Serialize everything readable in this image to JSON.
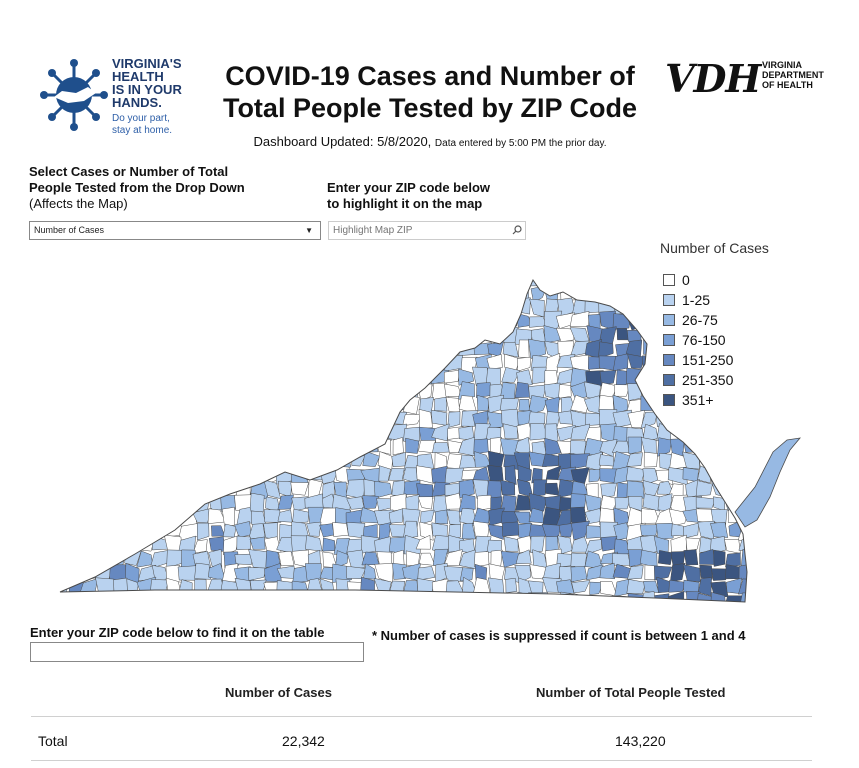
{
  "header": {
    "campaign_logo": {
      "text_lines": [
        "VIRGINIA'S",
        "HEALTH",
        "IS IN YOUR",
        "HANDS."
      ],
      "tagline": [
        "Do your part,",
        "stay at home."
      ],
      "color": "#1f3a6b"
    },
    "title_lines": [
      "COVID-19 Cases and Number of",
      "Total People Tested by ZIP Code"
    ],
    "updated_main": "Dashboard Updated: 5/8/2020,",
    "updated_note": "Data entered by 5:00 PM the prior day.",
    "agency_logo": {
      "mark": "VDH",
      "name_lines": [
        "VIRGINIA",
        "DEPARTMENT",
        "OF HEALTH"
      ]
    }
  },
  "controls": {
    "measure_label_lines": [
      "Select Cases or Number of Total",
      "People Tested from the Drop Down"
    ],
    "measure_label_sub": "(Affects the Map)",
    "measure_selected": "Number of Cases",
    "highlight_label_lines": [
      "Enter your ZIP code below",
      "to highlight it on the map"
    ],
    "highlight_placeholder": "Highlight Map ZIP"
  },
  "legend": {
    "title": "Number of Cases",
    "items": [
      {
        "label": "0",
        "color": "#ffffff"
      },
      {
        "label": "1-25",
        "color": "#b9d2ef"
      },
      {
        "label": "26-75",
        "color": "#97b9e3"
      },
      {
        "label": "76-150",
        "color": "#7a9fd4"
      },
      {
        "label": "151-250",
        "color": "#6688c0"
      },
      {
        "label": "251-350",
        "color": "#4f6fa3"
      },
      {
        "label": "351+",
        "color": "#3b5580"
      }
    ]
  },
  "map": {
    "icon": "virginia-zip-choropleth",
    "border_color": "#4a4a4a"
  },
  "table": {
    "find_label": "Enter your ZIP code below to find it on the table",
    "suppression_note": "* Number of cases is suppressed if count is between 1 and 4",
    "columns": [
      "Number of Cases",
      "Number of Total People Tested"
    ],
    "rows": [
      {
        "label": "Total",
        "cases": "22,342",
        "tested": "143,220"
      }
    ]
  }
}
